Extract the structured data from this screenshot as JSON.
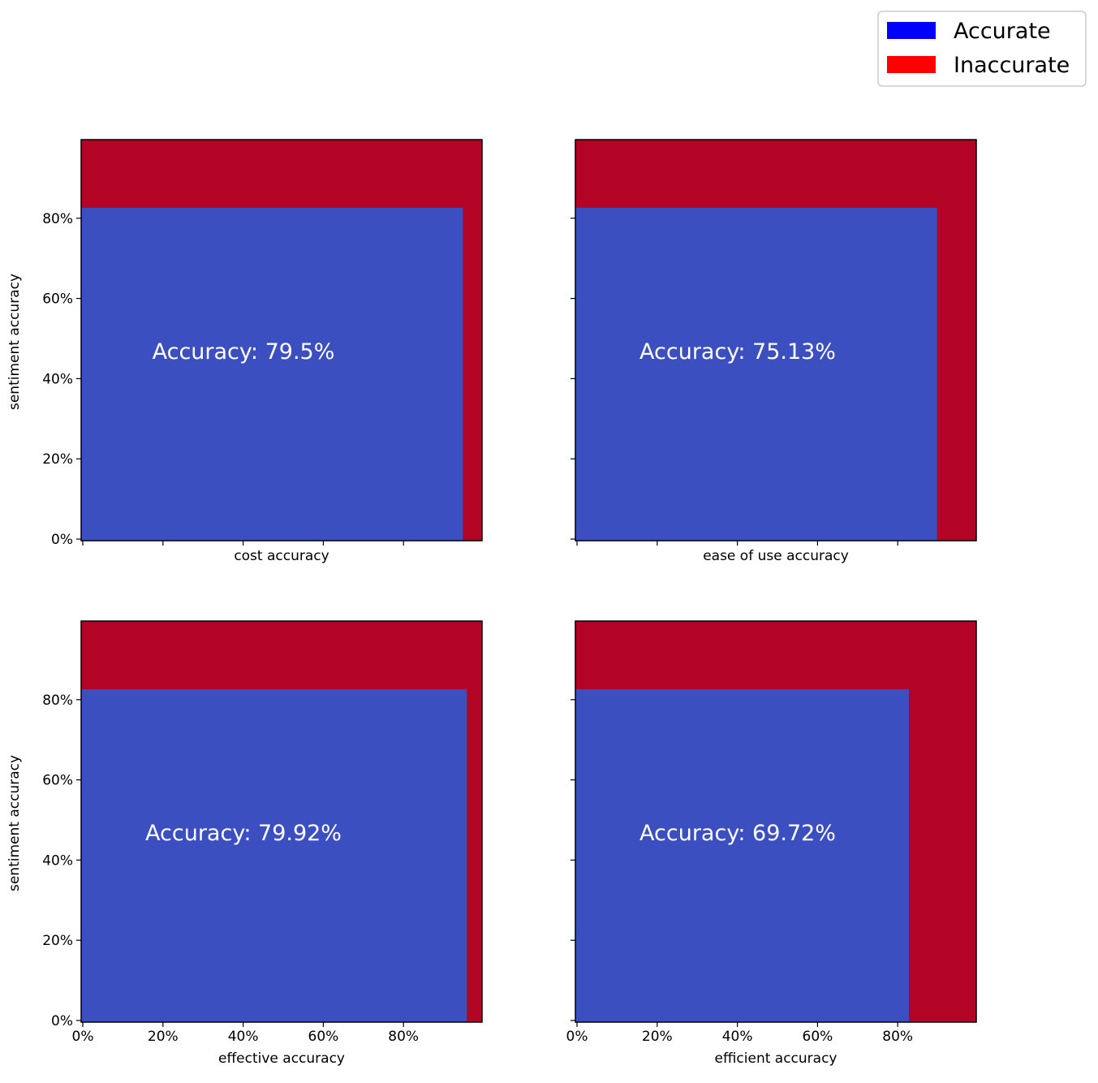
{
  "colors": {
    "accurate_fill": "#3c4fc0",
    "inaccurate_fill": "#b40426",
    "legend_accurate": "#0000ff",
    "legend_inaccurate": "#ff0000",
    "label_text": "#ffffff"
  },
  "legend": {
    "placement": "top-right",
    "entries": [
      {
        "label": "Accurate",
        "color": "#0000ff"
      },
      {
        "label": "Inaccurate",
        "color": "#ff0000"
      }
    ]
  },
  "chart_data": [
    {
      "type": "bar",
      "xlabel": "cost accuracy",
      "ylabel": "sentiment accuracy",
      "x_accuracy_pct": 95.2,
      "y_accuracy_pct": 83.0,
      "annotation": "Accuracy: 79.5%",
      "xlim": [
        0,
        100
      ],
      "ylim": [
        0,
        100
      ],
      "show_x_tick_labels": false,
      "show_y_tick_labels": true
    },
    {
      "type": "bar",
      "xlabel": "ease of use accuracy",
      "ylabel": "",
      "x_accuracy_pct": 90.2,
      "y_accuracy_pct": 83.0,
      "annotation": "Accuracy: 75.13%",
      "xlim": [
        0,
        100
      ],
      "ylim": [
        0,
        100
      ],
      "show_x_tick_labels": false,
      "show_y_tick_labels": false
    },
    {
      "type": "bar",
      "xlabel": "effective accuracy",
      "ylabel": "sentiment accuracy",
      "x_accuracy_pct": 96.2,
      "y_accuracy_pct": 83.0,
      "annotation": "Accuracy: 79.92%",
      "xlim": [
        0,
        100
      ],
      "ylim": [
        0,
        100
      ],
      "show_x_tick_labels": true,
      "show_y_tick_labels": true
    },
    {
      "type": "bar",
      "xlabel": "efficient accuracy",
      "ylabel": "",
      "x_accuracy_pct": 83.2,
      "y_accuracy_pct": 83.0,
      "annotation": "Accuracy: 69.72%",
      "xlim": [
        0,
        100
      ],
      "ylim": [
        0,
        100
      ],
      "show_x_tick_labels": true,
      "show_y_tick_labels": false
    }
  ],
  "ticks": {
    "x": [
      {
        "value": 0,
        "label": "0%"
      },
      {
        "value": 20,
        "label": "20%"
      },
      {
        "value": 40,
        "label": "40%"
      },
      {
        "value": 60,
        "label": "60%"
      },
      {
        "value": 80,
        "label": "80%"
      }
    ],
    "y": [
      {
        "value": 0,
        "label": "0%"
      },
      {
        "value": 20,
        "label": "20%"
      },
      {
        "value": 40,
        "label": "40%"
      },
      {
        "value": 60,
        "label": "60%"
      },
      {
        "value": 80,
        "label": "80%"
      }
    ]
  }
}
